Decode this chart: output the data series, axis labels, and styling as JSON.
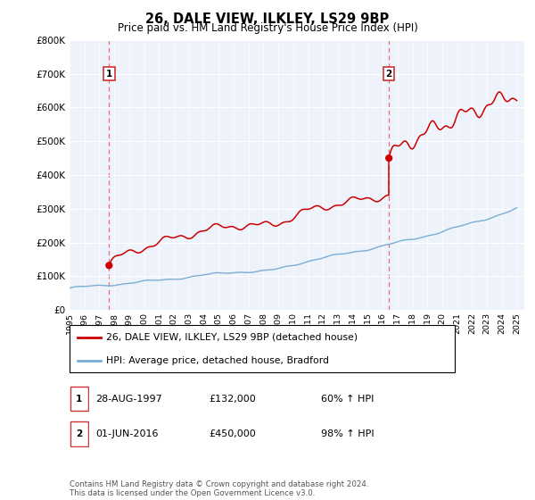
{
  "title": "26, DALE VIEW, ILKLEY, LS29 9BP",
  "subtitle": "Price paid vs. HM Land Registry's House Price Index (HPI)",
  "ylim": [
    0,
    800000
  ],
  "yticks": [
    0,
    100000,
    200000,
    300000,
    400000,
    500000,
    600000,
    700000,
    800000
  ],
  "x_start_year": 1995,
  "x_end_year": 2025,
  "sale1_date": "28-AUG-1997",
  "sale1_price": 132000,
  "sale1_x": 1997.65,
  "sale1_pct": "60%",
  "sale2_date": "01-JUN-2016",
  "sale2_price": 450000,
  "sale2_x": 2016.42,
  "sale2_pct": "98%",
  "line1_label": "26, DALE VIEW, ILKLEY, LS29 9BP (detached house)",
  "line2_label": "HPI: Average price, detached house, Bradford",
  "line1_color": "#cc0000",
  "line2_color": "#7aaed6",
  "dashed_color": "#e87070",
  "plot_bg_color": "#edf2fb",
  "grid_color": "#ffffff",
  "footnote": "Contains HM Land Registry data © Crown copyright and database right 2024.\nThis data is licensed under the Open Government Licence v3.0."
}
